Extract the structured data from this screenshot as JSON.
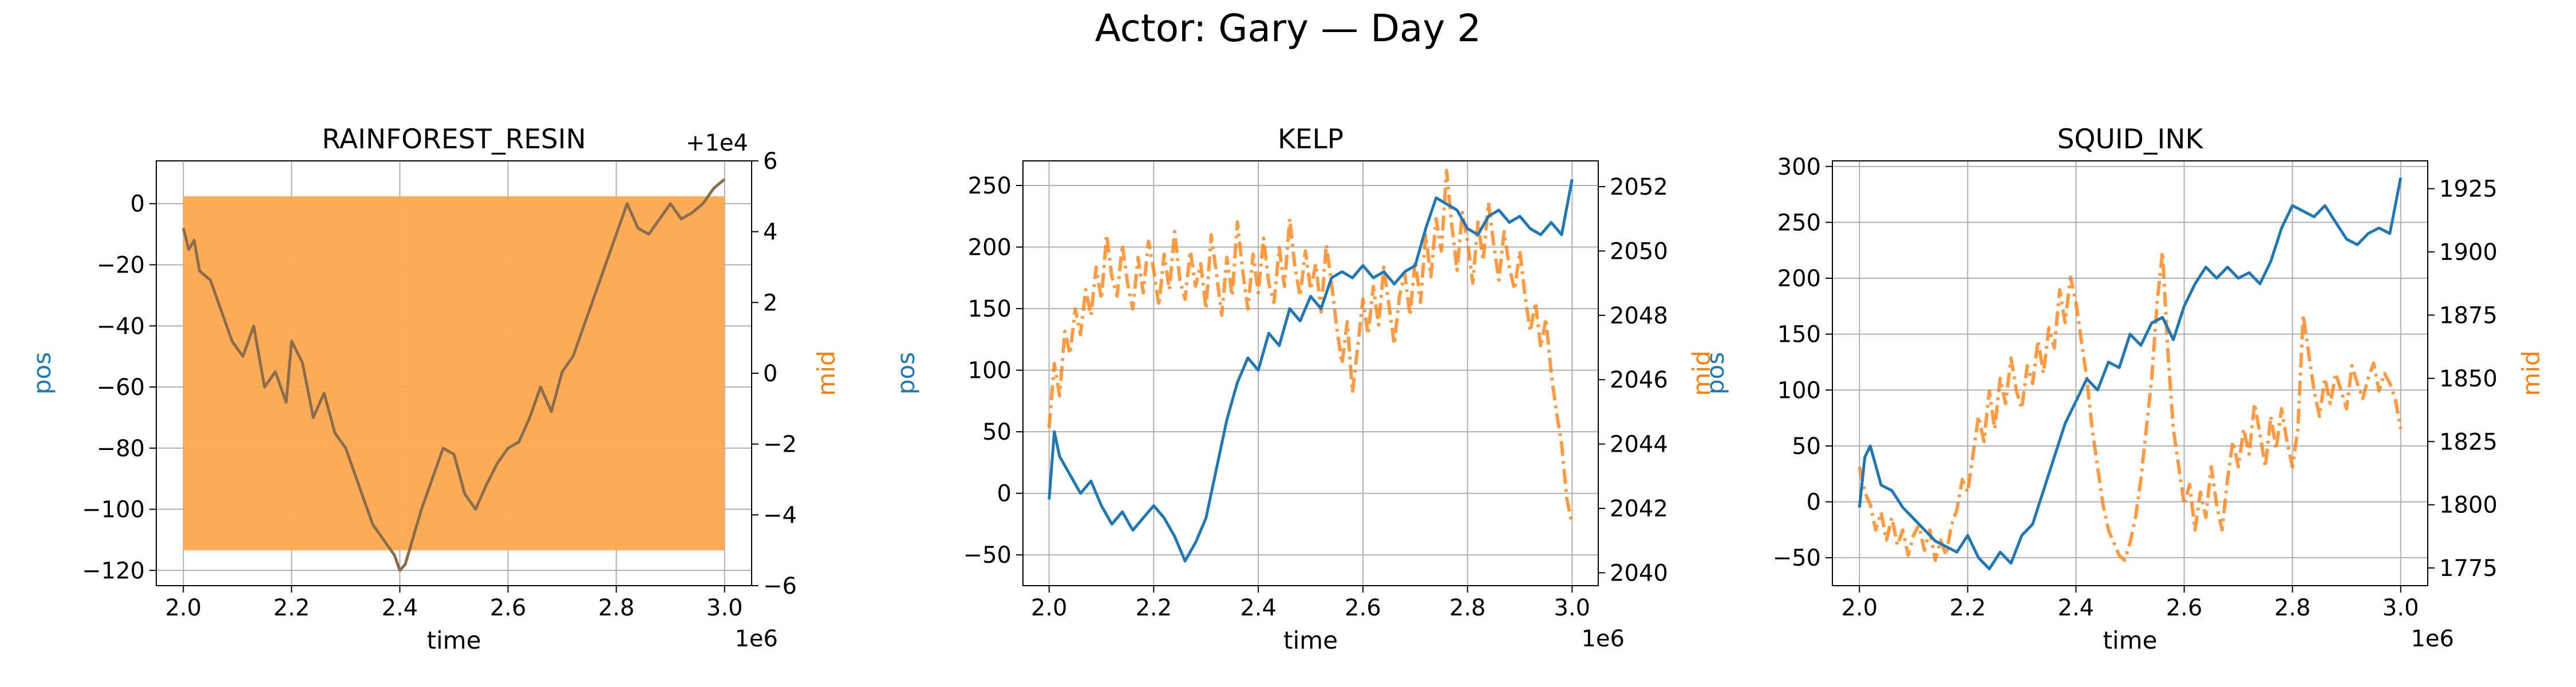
{
  "figure": {
    "title": "Actor: Gary — Day 2"
  },
  "colors": {
    "pos": "#1f77b4",
    "mid": "#ff7f0e"
  },
  "chart_data": [
    {
      "type": "line",
      "title": "RAINFOREST_RESIN",
      "xlabel": "time",
      "ylabel_left": "pos",
      "ylabel_right": "mid",
      "x_offset_label": "1e6",
      "y2_offset_label": "+1e4",
      "xlim": [
        1.95,
        3.05
      ],
      "xticks": [
        2.0,
        2.2,
        2.4,
        2.6,
        2.8,
        3.0
      ],
      "xtick_labels": [
        "2.0",
        "2.2",
        "2.4",
        "2.6",
        "2.8",
        "3.0"
      ],
      "ylim_left": [
        -125,
        14
      ],
      "yticks_left": [
        0,
        -20,
        -40,
        -60,
        -80,
        -100,
        -120
      ],
      "ylim_right": [
        -6,
        6
      ],
      "yticks_right": [
        6,
        4,
        2,
        0,
        -2,
        -4,
        -6
      ],
      "grid": true,
      "mid_band": {
        "low": -5,
        "high": 5,
        "color": "#ffa84f"
      },
      "series": [
        {
          "name": "pos",
          "axis": "left",
          "style": "solid",
          "x": [
            2.0,
            2.01,
            2.02,
            2.03,
            2.05,
            2.07,
            2.09,
            2.11,
            2.13,
            2.15,
            2.17,
            2.19,
            2.2,
            2.22,
            2.24,
            2.26,
            2.28,
            2.3,
            2.31,
            2.33,
            2.35,
            2.37,
            2.39,
            2.4,
            2.41,
            2.42,
            2.44,
            2.46,
            2.48,
            2.5,
            2.52,
            2.54,
            2.56,
            2.58,
            2.6,
            2.62,
            2.64,
            2.66,
            2.68,
            2.7,
            2.72,
            2.74,
            2.76,
            2.78,
            2.8,
            2.82,
            2.84,
            2.86,
            2.88,
            2.9,
            2.92,
            2.94,
            2.96,
            2.98,
            3.0
          ],
          "y": [
            -8,
            -15,
            -12,
            -22,
            -25,
            -35,
            -45,
            -50,
            -40,
            -60,
            -55,
            -65,
            -45,
            -52,
            -70,
            -62,
            -75,
            -80,
            -85,
            -95,
            -105,
            -110,
            -115,
            -120,
            -118,
            -112,
            -100,
            -90,
            -80,
            -82,
            -95,
            -100,
            -92,
            -85,
            -80,
            -78,
            -70,
            -60,
            -68,
            -55,
            -50,
            -40,
            -30,
            -20,
            -10,
            0,
            -8,
            -10,
            -5,
            0,
            -5,
            -3,
            0,
            5,
            8
          ]
        }
      ]
    },
    {
      "type": "line",
      "title": "KELP",
      "xlabel": "time",
      "ylabel_left": "pos",
      "ylabel_right": "mid",
      "x_offset_label": "1e6",
      "xlim": [
        1.95,
        3.05
      ],
      "xticks": [
        2.0,
        2.2,
        2.4,
        2.6,
        2.8,
        3.0
      ],
      "xtick_labels": [
        "2.0",
        "2.2",
        "2.4",
        "2.6",
        "2.8",
        "3.0"
      ],
      "ylim_left": [
        -75,
        270
      ],
      "yticks_left": [
        250,
        200,
        150,
        100,
        50,
        0,
        -50
      ],
      "ylim_right": [
        2039.6,
        2052.8
      ],
      "yticks_right": [
        2052,
        2050,
        2048,
        2046,
        2044,
        2042,
        2040
      ],
      "grid": true,
      "series": [
        {
          "name": "pos",
          "axis": "left",
          "style": "solid",
          "x": [
            2.0,
            2.01,
            2.02,
            2.04,
            2.06,
            2.08,
            2.1,
            2.12,
            2.14,
            2.16,
            2.18,
            2.2,
            2.22,
            2.24,
            2.26,
            2.28,
            2.3,
            2.32,
            2.34,
            2.36,
            2.38,
            2.4,
            2.42,
            2.44,
            2.46,
            2.48,
            2.5,
            2.52,
            2.54,
            2.56,
            2.58,
            2.6,
            2.62,
            2.64,
            2.66,
            2.68,
            2.7,
            2.72,
            2.74,
            2.76,
            2.78,
            2.8,
            2.82,
            2.84,
            2.86,
            2.88,
            2.9,
            2.92,
            2.94,
            2.96,
            2.98,
            3.0
          ],
          "y": [
            -5,
            50,
            30,
            15,
            0,
            10,
            -10,
            -25,
            -15,
            -30,
            -20,
            -10,
            -20,
            -35,
            -55,
            -40,
            -20,
            20,
            60,
            90,
            110,
            100,
            130,
            120,
            150,
            140,
            160,
            150,
            175,
            180,
            175,
            185,
            175,
            180,
            170,
            180,
            185,
            215,
            240,
            235,
            230,
            215,
            210,
            225,
            230,
            220,
            225,
            215,
            210,
            220,
            210,
            255
          ]
        },
        {
          "name": "mid",
          "axis": "right",
          "style": "dash-dot",
          "x": [
            2.0,
            2.01,
            2.02,
            2.03,
            2.04,
            2.05,
            2.06,
            2.07,
            2.08,
            2.09,
            2.1,
            2.11,
            2.12,
            2.13,
            2.14,
            2.15,
            2.16,
            2.17,
            2.18,
            2.19,
            2.2,
            2.21,
            2.22,
            2.23,
            2.24,
            2.25,
            2.26,
            2.27,
            2.28,
            2.29,
            2.3,
            2.31,
            2.32,
            2.33,
            2.34,
            2.35,
            2.36,
            2.37,
            2.38,
            2.39,
            2.4,
            2.41,
            2.42,
            2.43,
            2.44,
            2.45,
            2.46,
            2.47,
            2.48,
            2.49,
            2.5,
            2.51,
            2.52,
            2.53,
            2.54,
            2.55,
            2.56,
            2.57,
            2.58,
            2.59,
            2.6,
            2.61,
            2.62,
            2.63,
            2.64,
            2.65,
            2.66,
            2.67,
            2.68,
            2.69,
            2.7,
            2.71,
            2.72,
            2.73,
            2.74,
            2.75,
            2.76,
            2.77,
            2.78,
            2.79,
            2.8,
            2.81,
            2.82,
            2.83,
            2.84,
            2.85,
            2.86,
            2.87,
            2.88,
            2.89,
            2.9,
            2.91,
            2.92,
            2.93,
            2.94,
            2.95,
            2.96,
            2.97,
            2.98,
            2.99,
            3.0
          ],
          "y": [
            2044.5,
            2046.5,
            2045.5,
            2047.5,
            2046.8,
            2048.2,
            2047.4,
            2048.8,
            2048.0,
            2049.5,
            2048.5,
            2050.5,
            2049.2,
            2048.6,
            2050.2,
            2049.0,
            2048.2,
            2049.8,
            2048.7,
            2050.3,
            2049.4,
            2048.3,
            2049.9,
            2048.8,
            2050.6,
            2049.1,
            2048.5,
            2050.0,
            2048.9,
            2049.6,
            2048.2,
            2050.5,
            2049.3,
            2048.0,
            2049.8,
            2048.6,
            2050.9,
            2049.4,
            2048.2,
            2049.9,
            2048.7,
            2050.4,
            2049.0,
            2048.4,
            2050.1,
            2048.9,
            2051.0,
            2049.5,
            2048.6,
            2050.0,
            2048.8,
            2049.6,
            2048.1,
            2050.2,
            2049.0,
            2047.6,
            2046.5,
            2047.8,
            2045.6,
            2047.0,
            2048.5,
            2047.4,
            2048.9,
            2047.7,
            2049.5,
            2048.3,
            2047.1,
            2048.6,
            2049.3,
            2048.0,
            2049.7,
            2048.4,
            2050.5,
            2049.2,
            2051.0,
            2050.0,
            2052.5,
            2050.8,
            2049.4,
            2051.2,
            2050.3,
            2049.0,
            2050.9,
            2049.7,
            2051.5,
            2050.2,
            2049.1,
            2050.6,
            2049.5,
            2048.8,
            2050.0,
            2048.6,
            2047.5,
            2048.4,
            2047.0,
            2047.9,
            2046.2,
            2045.0,
            2044.0,
            2042.3,
            2041.5
          ]
        }
      ]
    },
    {
      "type": "line",
      "title": "SQUID_INK",
      "xlabel": "time",
      "ylabel_left": "pos",
      "ylabel_right": "mid",
      "x_offset_label": "1e6",
      "xlim": [
        1.95,
        3.05
      ],
      "xticks": [
        2.0,
        2.2,
        2.4,
        2.6,
        2.8,
        3.0
      ],
      "xtick_labels": [
        "2.0",
        "2.2",
        "2.4",
        "2.6",
        "2.8",
        "3.0"
      ],
      "ylim_left": [
        -75,
        305
      ],
      "yticks_left": [
        300,
        250,
        200,
        150,
        100,
        50,
        0,
        -50
      ],
      "ylim_right": [
        1768,
        1936
      ],
      "yticks_right": [
        1925,
        1900,
        1875,
        1850,
        1825,
        1800,
        1775
      ],
      "grid": true,
      "series": [
        {
          "name": "pos",
          "axis": "left",
          "style": "solid",
          "x": [
            2.0,
            2.01,
            2.02,
            2.04,
            2.06,
            2.08,
            2.1,
            2.12,
            2.14,
            2.16,
            2.18,
            2.2,
            2.22,
            2.24,
            2.26,
            2.28,
            2.3,
            2.32,
            2.34,
            2.36,
            2.38,
            2.4,
            2.42,
            2.44,
            2.46,
            2.48,
            2.5,
            2.52,
            2.54,
            2.56,
            2.58,
            2.6,
            2.62,
            2.64,
            2.66,
            2.68,
            2.7,
            2.72,
            2.74,
            2.76,
            2.78,
            2.8,
            2.82,
            2.84,
            2.86,
            2.88,
            2.9,
            2.92,
            2.94,
            2.96,
            2.98,
            3.0
          ],
          "y": [
            -5,
            40,
            50,
            15,
            10,
            -5,
            -15,
            -25,
            -35,
            -40,
            -45,
            -30,
            -50,
            -60,
            -45,
            -55,
            -30,
            -20,
            10,
            40,
            70,
            90,
            110,
            100,
            125,
            120,
            150,
            140,
            160,
            165,
            145,
            175,
            195,
            210,
            200,
            210,
            200,
            205,
            195,
            215,
            245,
            265,
            260,
            255,
            265,
            250,
            235,
            230,
            240,
            245,
            240,
            290
          ]
        },
        {
          "name": "mid",
          "axis": "right",
          "style": "dash-dot",
          "x": [
            2.0,
            2.01,
            2.02,
            2.03,
            2.04,
            2.05,
            2.06,
            2.07,
            2.08,
            2.09,
            2.1,
            2.11,
            2.12,
            2.13,
            2.14,
            2.15,
            2.16,
            2.17,
            2.18,
            2.19,
            2.2,
            2.21,
            2.22,
            2.23,
            2.24,
            2.25,
            2.26,
            2.27,
            2.28,
            2.29,
            2.3,
            2.31,
            2.32,
            2.33,
            2.34,
            2.35,
            2.36,
            2.37,
            2.38,
            2.39,
            2.4,
            2.41,
            2.42,
            2.43,
            2.44,
            2.45,
            2.46,
            2.47,
            2.48,
            2.49,
            2.5,
            2.51,
            2.52,
            2.53,
            2.54,
            2.55,
            2.56,
            2.57,
            2.58,
            2.59,
            2.6,
            2.61,
            2.62,
            2.63,
            2.64,
            2.65,
            2.66,
            2.67,
            2.68,
            2.69,
            2.7,
            2.71,
            2.72,
            2.73,
            2.74,
            2.75,
            2.76,
            2.77,
            2.78,
            2.79,
            2.8,
            2.81,
            2.82,
            2.83,
            2.84,
            2.85,
            2.86,
            2.87,
            2.88,
            2.89,
            2.9,
            2.91,
            2.92,
            2.93,
            2.94,
            2.95,
            2.96,
            2.97,
            2.98,
            2.99,
            3.0
          ],
          "y": [
            1815,
            1805,
            1800,
            1790,
            1797,
            1786,
            1795,
            1784,
            1790,
            1780,
            1788,
            1792,
            1782,
            1790,
            1778,
            1786,
            1780,
            1792,
            1798,
            1810,
            1805,
            1820,
            1835,
            1825,
            1845,
            1830,
            1850,
            1840,
            1858,
            1845,
            1838,
            1855,
            1848,
            1865,
            1852,
            1870,
            1862,
            1885,
            1872,
            1890,
            1880,
            1865,
            1850,
            1830,
            1815,
            1800,
            1790,
            1785,
            1780,
            1778,
            1785,
            1795,
            1810,
            1830,
            1850,
            1880,
            1900,
            1860,
            1830,
            1815,
            1800,
            1808,
            1790,
            1805,
            1795,
            1815,
            1800,
            1790,
            1810,
            1825,
            1815,
            1830,
            1820,
            1840,
            1828,
            1815,
            1835,
            1822,
            1838,
            1825,
            1815,
            1830,
            1875,
            1860,
            1845,
            1835,
            1850,
            1840,
            1852,
            1845,
            1838,
            1855,
            1848,
            1842,
            1850,
            1856,
            1845,
            1852,
            1848,
            1842,
            1830
          ]
        }
      ]
    }
  ]
}
